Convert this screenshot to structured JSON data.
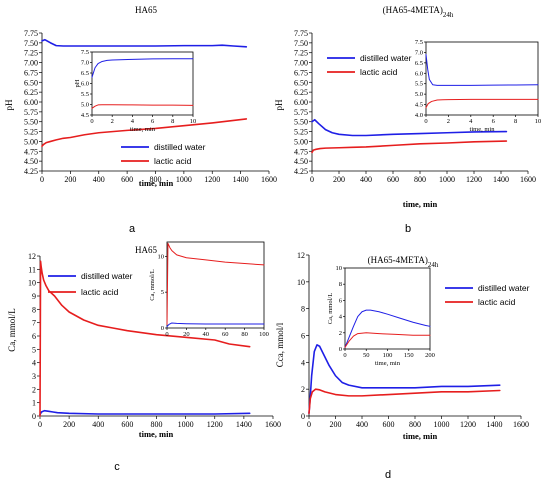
{
  "colors": {
    "distilled": "#1f1fe6",
    "lactic": "#e61e1e",
    "axis": "#000000"
  },
  "chart_data": [
    {
      "id": "a",
      "type": "line",
      "panel_label": "a",
      "title": "HA65",
      "xlabel": "time, min",
      "ylabel": "pH",
      "xlim": [
        0,
        1600
      ],
      "ylim": [
        4.25,
        7.75
      ],
      "xticks": [
        0,
        200,
        400,
        600,
        800,
        1000,
        1200,
        1400,
        1600
      ],
      "yticks": [
        4.25,
        4.5,
        4.75,
        5.0,
        5.25,
        5.5,
        5.75,
        6.0,
        6.25,
        6.5,
        6.75,
        7.0,
        7.25,
        7.5,
        7.75
      ],
      "ytick_labels": [
        "4.25",
        "4.50",
        "4.75",
        "5.00",
        "5.25",
        "5.50",
        "5.75",
        "6.00",
        "6.25",
        "6.50",
        "6.75",
        "7.00",
        "7.25",
        "7.50",
        "7.75"
      ],
      "legend": "bottom-right",
      "series": [
        {
          "name": "distilled water",
          "color": "distilled",
          "x": [
            0,
            20,
            60,
            100,
            150,
            200,
            400,
            600,
            800,
            1000,
            1200,
            1270,
            1350,
            1440
          ],
          "y": [
            7.55,
            7.58,
            7.5,
            7.43,
            7.42,
            7.42,
            7.42,
            7.42,
            7.42,
            7.43,
            7.43,
            7.44,
            7.42,
            7.4
          ]
        },
        {
          "name": "lactic acid",
          "color": "lactic",
          "x": [
            0,
            10,
            30,
            60,
            100,
            150,
            200,
            300,
            400,
            600,
            800,
            1000,
            1200,
            1440
          ],
          "y": [
            4.88,
            4.92,
            4.97,
            5.0,
            5.04,
            5.08,
            5.1,
            5.17,
            5.22,
            5.28,
            5.33,
            5.4,
            5.47,
            5.57
          ]
        }
      ],
      "inset": {
        "xlabel": "time, min",
        "ylabel": "pH",
        "xlim": [
          0,
          10
        ],
        "ylim": [
          4.5,
          7.5
        ],
        "xticks": [
          0,
          2,
          4,
          6,
          8,
          10
        ],
        "yticks": [
          4.5,
          5.0,
          5.5,
          6.0,
          6.5,
          7.0,
          7.5
        ],
        "ytick_labels": [
          "4.5",
          "5.0",
          "5.5",
          "6.0",
          "6.5",
          "7.0",
          "7.5"
        ],
        "series": [
          {
            "color": "distilled",
            "x": [
              0,
              0.3,
              0.6,
              1,
              1.5,
              2,
              4,
              6,
              8,
              10
            ],
            "y": [
              6.3,
              6.75,
              6.95,
              7.05,
              7.1,
              7.12,
              7.15,
              7.17,
              7.18,
              7.18
            ]
          },
          {
            "color": "lactic",
            "x": [
              0,
              0.3,
              0.6,
              1,
              2,
              4,
              6,
              8,
              10
            ],
            "y": [
              4.82,
              4.92,
              4.98,
              4.99,
              4.99,
              4.98,
              4.97,
              4.97,
              4.96
            ]
          }
        ]
      }
    },
    {
      "id": "b",
      "type": "line",
      "panel_label": "b",
      "title": "(HA65-4META)",
      "title_sub": "24h",
      "xlabel": "time, min",
      "ylabel": "pH",
      "xlim": [
        0,
        1600
      ],
      "ylim": [
        4.25,
        7.75
      ],
      "xticks": [
        0,
        200,
        400,
        600,
        800,
        1000,
        1200,
        1400,
        1600
      ],
      "yticks": [
        4.25,
        4.5,
        4.75,
        5.0,
        5.25,
        5.5,
        5.75,
        6.0,
        6.25,
        6.5,
        6.75,
        7.0,
        7.25,
        7.5,
        7.75
      ],
      "ytick_labels": [
        "4.25",
        "4.50",
        "4.75",
        "5.00",
        "5.25",
        "5.50",
        "5.75",
        "6.00",
        "6.25",
        "6.50",
        "6.75",
        "7.00",
        "7.25",
        "7.50",
        "7.75"
      ],
      "legend": "top-left",
      "series": [
        {
          "name": "distilled water",
          "color": "distilled",
          "x": [
            0,
            20,
            50,
            100,
            150,
            200,
            300,
            400,
            600,
            800,
            1000,
            1200,
            1440
          ],
          "y": [
            5.5,
            5.55,
            5.45,
            5.3,
            5.22,
            5.18,
            5.15,
            5.15,
            5.18,
            5.2,
            5.22,
            5.24,
            5.25
          ]
        },
        {
          "name": "lactic acid",
          "color": "lactic",
          "x": [
            0,
            10,
            30,
            60,
            100,
            200,
            300,
            400,
            600,
            800,
            1000,
            1200,
            1440
          ],
          "y": [
            4.72,
            4.78,
            4.8,
            4.82,
            4.83,
            4.84,
            4.85,
            4.86,
            4.9,
            4.94,
            4.96,
            4.99,
            5.01
          ]
        }
      ],
      "inset": {
        "xlabel": "time, min",
        "ylabel": "",
        "xlim": [
          0,
          10
        ],
        "ylim": [
          4.0,
          7.5
        ],
        "xticks": [
          0,
          2,
          4,
          6,
          8,
          10
        ],
        "yticks": [
          4.0,
          4.5,
          5.0,
          5.5,
          6.0,
          6.5,
          7.0,
          7.5
        ],
        "ytick_labels": [
          "4.0",
          "4.5",
          "5.0",
          "5.5",
          "6.0",
          "6.5",
          "7.0",
          "7.5"
        ],
        "series": [
          {
            "color": "distilled",
            "x": [
              0,
              0.15,
              0.3,
              0.6,
              1,
              2,
              4,
              6,
              8,
              10
            ],
            "y": [
              6.9,
              6.2,
              5.7,
              5.45,
              5.42,
              5.42,
              5.42,
              5.43,
              5.44,
              5.45
            ]
          },
          {
            "color": "lactic",
            "x": [
              0,
              0.2,
              0.5,
              1,
              1.5,
              2,
              4,
              6,
              8,
              10
            ],
            "y": [
              4.35,
              4.55,
              4.65,
              4.72,
              4.73,
              4.74,
              4.75,
              4.75,
              4.75,
              4.75
            ]
          }
        ]
      }
    },
    {
      "id": "c",
      "type": "line",
      "panel_label": "c",
      "title": "HA65",
      "xlabel": "time, min",
      "ylabel": "Ca, mmol/L",
      "xlim": [
        0,
        1600
      ],
      "ylim": [
        0,
        12
      ],
      "xticks": [
        0,
        200,
        400,
        600,
        800,
        1000,
        1200,
        1400,
        1600
      ],
      "yticks": [
        0,
        1,
        2,
        3,
        4,
        5,
        6,
        7,
        8,
        9,
        10,
        11,
        12
      ],
      "ytick_labels": [
        "0",
        "1",
        "2",
        "3",
        "4",
        "5",
        "6",
        "7",
        "8",
        "9",
        "10",
        "11",
        "12"
      ],
      "legend": "top-left",
      "series": [
        {
          "name": "distilled water",
          "color": "distilled",
          "x": [
            0,
            10,
            30,
            60,
            90,
            120,
            200,
            400,
            600,
            800,
            1000,
            1200,
            1440
          ],
          "y": [
            0.1,
            0.3,
            0.4,
            0.35,
            0.3,
            0.25,
            0.2,
            0.15,
            0.15,
            0.15,
            0.15,
            0.15,
            0.2
          ]
        },
        {
          "name": "lactic acid",
          "color": "lactic",
          "x": [
            0,
            4,
            8,
            15,
            25,
            40,
            60,
            100,
            150,
            200,
            300,
            400,
            500,
            600,
            800,
            1000,
            1200,
            1300,
            1440
          ],
          "y": [
            0,
            11.6,
            11.2,
            10.7,
            10.2,
            9.8,
            9.4,
            9.0,
            8.3,
            7.8,
            7.2,
            6.8,
            6.6,
            6.4,
            6.1,
            5.9,
            5.7,
            5.4,
            5.2
          ]
        }
      ],
      "inset": {
        "xlabel": "",
        "ylabel": "Ca, mmol/L",
        "xlim": [
          0,
          100
        ],
        "ylim": [
          0,
          12
        ],
        "xticks": [
          0,
          20,
          40,
          60,
          80,
          100
        ],
        "yticks": [
          0,
          5,
          10
        ],
        "ytick_labels": [
          "0",
          "5",
          "10"
        ],
        "series": [
          {
            "color": "distilled",
            "x": [
              0,
              2,
              5,
              10,
              20,
              40,
              60,
              80,
              100
            ],
            "y": [
              0.2,
              0.5,
              0.7,
              0.65,
              0.6,
              0.55,
              0.55,
              0.55,
              0.55
            ]
          },
          {
            "color": "lactic",
            "x": [
              0,
              1,
              3,
              5,
              10,
              20,
              40,
              60,
              80,
              100
            ],
            "y": [
              0.5,
              11.8,
              11.2,
              10.8,
              10.2,
              9.8,
              9.5,
              9.2,
              9.0,
              8.8
            ]
          }
        ]
      }
    },
    {
      "id": "d",
      "type": "line",
      "panel_label": "d",
      "title": "(HA65-4META)",
      "title_sub": "24h",
      "xlabel": "time, min",
      "ylabel": "Cca, mmol/l",
      "xlim": [
        0,
        1600
      ],
      "ylim": [
        0,
        12
      ],
      "xticks": [
        0,
        200,
        400,
        600,
        800,
        1000,
        1200,
        1400,
        1600
      ],
      "yticks": [
        0,
        2,
        4,
        6,
        8,
        10,
        12
      ],
      "ytick_labels": [
        "0",
        "2",
        "4",
        "6",
        "8",
        "10",
        "12"
      ],
      "legend": "top-right",
      "series": [
        {
          "name": "distilled water",
          "color": "distilled",
          "x": [
            0,
            10,
            20,
            40,
            60,
            80,
            100,
            150,
            200,
            250,
            300,
            400,
            600,
            800,
            1000,
            1200,
            1440
          ],
          "y": [
            0.2,
            1.5,
            3.0,
            4.8,
            5.3,
            5.2,
            4.8,
            3.8,
            3.0,
            2.5,
            2.3,
            2.1,
            2.1,
            2.1,
            2.2,
            2.2,
            2.3
          ]
        },
        {
          "name": "lactic acid",
          "color": "lactic",
          "x": [
            0,
            10,
            25,
            50,
            80,
            120,
            200,
            300,
            400,
            600,
            800,
            1000,
            1200,
            1440
          ],
          "y": [
            0.2,
            1.3,
            1.8,
            2.0,
            1.95,
            1.8,
            1.6,
            1.5,
            1.5,
            1.6,
            1.7,
            1.8,
            1.8,
            1.9
          ]
        }
      ],
      "inset": {
        "xlabel": "time, min",
        "ylabel": "Ca, mmol/L",
        "xlim": [
          0,
          200
        ],
        "ylim": [
          0,
          10
        ],
        "xticks": [
          0,
          50,
          100,
          150,
          200
        ],
        "yticks": [
          0,
          2,
          4,
          6,
          8,
          10
        ],
        "ytick_labels": [
          "0",
          "2",
          "4",
          "6",
          "8",
          "10"
        ],
        "series": [
          {
            "color": "distilled",
            "x": [
              0,
              10,
              20,
              30,
              40,
              50,
              60,
              80,
              100,
              130,
              160,
              190,
              200
            ],
            "y": [
              0.2,
              1.5,
              2.8,
              4.0,
              4.6,
              4.8,
              4.8,
              4.6,
              4.3,
              3.8,
              3.3,
              2.9,
              2.8
            ]
          },
          {
            "color": "lactic",
            "x": [
              0,
              10,
              20,
              30,
              50,
              80,
              120,
              160,
              200
            ],
            "y": [
              0.2,
              1.0,
              1.6,
              1.9,
              2.0,
              1.9,
              1.8,
              1.7,
              1.7
            ]
          }
        ]
      }
    }
  ]
}
